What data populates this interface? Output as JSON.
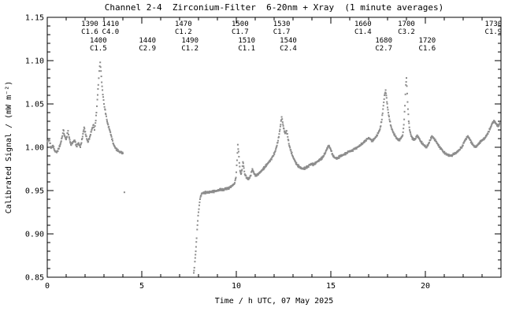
{
  "chart_data": {
    "type": "scatter",
    "title": "Channel 2-4  Zirconium-Filter  6-20nm + Xray  (1 minute averages)",
    "xlabel": "Time / h UTC, 07 May 2025",
    "ylabel": "Calibrated Signal / (mW m⁻²)",
    "xlim": [
      0,
      24
    ],
    "ylim": [
      0.85,
      1.15
    ],
    "xticks_major": [
      0,
      5,
      10,
      15,
      20
    ],
    "xtick_labels": [
      "0",
      "5",
      "10",
      "15",
      "20"
    ],
    "x_minor_step": 1,
    "yticks_major": [
      0.85,
      0.9,
      0.95,
      1.0,
      1.05,
      1.1,
      1.15
    ],
    "ytick_labels": [
      "0.85",
      "0.90",
      "0.95",
      "1.00",
      "1.05",
      "1.10",
      "1.15"
    ],
    "y_minor_step": 0.01,
    "grid": false,
    "legend": "none",
    "marker": "square",
    "marker_size": 2,
    "marker_color": "#8c8c8c",
    "axis_color": "#000000",
    "flare_annotations": [
      {
        "event": "1390",
        "class": "C1.6",
        "t": 2.25,
        "row": "upper"
      },
      {
        "event": "1400",
        "class": "C1.5",
        "t": 2.7,
        "row": "lower"
      },
      {
        "event": "1410",
        "class": "C4.0",
        "t": 3.35,
        "row": "upper"
      },
      {
        "event": "1440",
        "class": "C2.9",
        "t": 5.3,
        "row": "lower"
      },
      {
        "event": "1470",
        "class": "C1.2",
        "t": 7.2,
        "row": "upper"
      },
      {
        "event": "1490",
        "class": "C1.2",
        "t": 7.55,
        "row": "lower"
      },
      {
        "event": "1500",
        "class": "C1.7",
        "t": 10.2,
        "row": "upper"
      },
      {
        "event": "1510",
        "class": "C1.1",
        "t": 10.55,
        "row": "lower"
      },
      {
        "event": "1530",
        "class": "C1.7",
        "t": 12.4,
        "row": "upper"
      },
      {
        "event": "1540",
        "class": "C2.4",
        "t": 12.75,
        "row": "lower"
      },
      {
        "event": "1660",
        "class": "C1.4",
        "t": 16.7,
        "row": "upper"
      },
      {
        "event": "1680",
        "class": "C2.7",
        "t": 17.8,
        "row": "lower"
      },
      {
        "event": "1700",
        "class": "C3.2",
        "t": 19.0,
        "row": "upper"
      },
      {
        "event": "1720",
        "class": "C1.6",
        "t": 20.1,
        "row": "lower"
      },
      {
        "event": "1730",
        "class": "C1.9",
        "t": 23.6,
        "row": "upper"
      }
    ],
    "segments": [
      [
        [
          0.0,
          1.006
        ],
        [
          0.1,
          1.01
        ],
        [
          0.2,
          0.999
        ],
        [
          0.3,
          1.002
        ],
        [
          0.4,
          0.996
        ],
        [
          0.5,
          0.994
        ],
        [
          0.6,
          0.998
        ],
        [
          0.7,
          1.004
        ],
        [
          0.8,
          1.013
        ],
        [
          0.85,
          1.02
        ],
        [
          0.9,
          1.014
        ],
        [
          1.0,
          1.009
        ],
        [
          1.1,
          1.019
        ],
        [
          1.15,
          1.012
        ],
        [
          1.25,
          1.003
        ],
        [
          1.35,
          1.006
        ],
        [
          1.45,
          1.008
        ],
        [
          1.55,
          1.001
        ],
        [
          1.65,
          1.005
        ],
        [
          1.75,
          1.0
        ],
        [
          1.85,
          1.01
        ],
        [
          1.95,
          1.023
        ],
        [
          2.05,
          1.013
        ],
        [
          2.15,
          1.006
        ],
        [
          2.25,
          1.012
        ],
        [
          2.35,
          1.02
        ],
        [
          2.45,
          1.026
        ],
        [
          2.5,
          1.02
        ],
        [
          2.55,
          1.028
        ],
        [
          2.6,
          1.04
        ],
        [
          2.65,
          1.055
        ],
        [
          2.7,
          1.072
        ],
        [
          2.75,
          1.088
        ],
        [
          2.8,
          1.098
        ],
        [
          2.84,
          1.088
        ],
        [
          2.88,
          1.075
        ],
        [
          2.92,
          1.066
        ],
        [
          2.96,
          1.058
        ],
        [
          3.0,
          1.05
        ],
        [
          3.05,
          1.044
        ],
        [
          3.1,
          1.038
        ],
        [
          3.15,
          1.032
        ],
        [
          3.2,
          1.027
        ],
        [
          3.3,
          1.02
        ],
        [
          3.4,
          1.012
        ],
        [
          3.5,
          1.004
        ],
        [
          3.6,
          0.999
        ],
        [
          3.7,
          0.997
        ],
        [
          3.8,
          0.995
        ],
        [
          3.9,
          0.994
        ],
        [
          4.0,
          0.993
        ]
      ],
      [
        [
          4.08,
          0.948
        ]
      ],
      [
        [
          7.75,
          0.855
        ],
        [
          7.78,
          0.861
        ],
        [
          7.81,
          0.868
        ],
        [
          7.84,
          0.876
        ],
        [
          7.87,
          0.885
        ],
        [
          7.9,
          0.895
        ],
        [
          7.93,
          0.905
        ],
        [
          7.96,
          0.915
        ],
        [
          8.0,
          0.925
        ],
        [
          8.04,
          0.933
        ],
        [
          8.08,
          0.94
        ],
        [
          8.12,
          0.944
        ],
        [
          8.16,
          0.946
        ],
        [
          8.25,
          0.947
        ],
        [
          8.4,
          0.948
        ],
        [
          8.55,
          0.948
        ],
        [
          8.7,
          0.949
        ],
        [
          8.85,
          0.949
        ],
        [
          9.0,
          0.95
        ],
        [
          9.15,
          0.951
        ],
        [
          9.3,
          0.951
        ],
        [
          9.45,
          0.952
        ],
        [
          9.6,
          0.953
        ],
        [
          9.75,
          0.955
        ],
        [
          9.9,
          0.958
        ],
        [
          9.98,
          0.965
        ],
        [
          10.04,
          0.985
        ],
        [
          10.08,
          1.003
        ],
        [
          10.12,
          0.995
        ],
        [
          10.16,
          0.982
        ],
        [
          10.2,
          0.973
        ],
        [
          10.25,
          0.969
        ],
        [
          10.3,
          0.974
        ],
        [
          10.35,
          0.983
        ],
        [
          10.4,
          0.976
        ],
        [
          10.45,
          0.969
        ],
        [
          10.55,
          0.965
        ],
        [
          10.65,
          0.963
        ],
        [
          10.75,
          0.967
        ],
        [
          10.85,
          0.975
        ],
        [
          10.95,
          0.969
        ],
        [
          11.05,
          0.967
        ],
        [
          11.2,
          0.97
        ],
        [
          11.35,
          0.973
        ],
        [
          11.5,
          0.977
        ],
        [
          11.65,
          0.981
        ],
        [
          11.8,
          0.985
        ],
        [
          11.95,
          0.99
        ],
        [
          12.05,
          0.995
        ],
        [
          12.15,
          1.002
        ],
        [
          12.25,
          1.012
        ],
        [
          12.33,
          1.024
        ],
        [
          12.4,
          1.035
        ],
        [
          12.45,
          1.029
        ],
        [
          12.5,
          1.022
        ],
        [
          12.58,
          1.016
        ],
        [
          12.66,
          1.019
        ],
        [
          12.72,
          1.012
        ],
        [
          12.8,
          1.002
        ],
        [
          12.9,
          0.995
        ],
        [
          13.0,
          0.989
        ],
        [
          13.1,
          0.984
        ],
        [
          13.2,
          0.98
        ],
        [
          13.35,
          0.977
        ],
        [
          13.5,
          0.975
        ],
        [
          13.65,
          0.976
        ],
        [
          13.8,
          0.978
        ],
        [
          13.95,
          0.981
        ],
        [
          14.1,
          0.98
        ],
        [
          14.25,
          0.983
        ],
        [
          14.4,
          0.985
        ],
        [
          14.55,
          0.988
        ],
        [
          14.7,
          0.993
        ],
        [
          14.8,
          0.999
        ],
        [
          14.9,
          1.002
        ],
        [
          15.0,
          0.997
        ],
        [
          15.1,
          0.991
        ],
        [
          15.2,
          0.988
        ],
        [
          15.35,
          0.987
        ],
        [
          15.5,
          0.99
        ],
        [
          15.65,
          0.991
        ],
        [
          15.8,
          0.993
        ],
        [
          15.95,
          0.995
        ],
        [
          16.1,
          0.996
        ],
        [
          16.25,
          0.998
        ],
        [
          16.4,
          1.0
        ],
        [
          16.55,
          1.002
        ],
        [
          16.7,
          1.005
        ],
        [
          16.85,
          1.008
        ],
        [
          17.0,
          1.011
        ],
        [
          17.1,
          1.009
        ],
        [
          17.2,
          1.007
        ],
        [
          17.3,
          1.01
        ],
        [
          17.4,
          1.012
        ],
        [
          17.5,
          1.016
        ],
        [
          17.6,
          1.021
        ],
        [
          17.7,
          1.032
        ],
        [
          17.78,
          1.048
        ],
        [
          17.84,
          1.06
        ],
        [
          17.9,
          1.066
        ],
        [
          17.95,
          1.057
        ],
        [
          18.0,
          1.046
        ],
        [
          18.06,
          1.037
        ],
        [
          18.12,
          1.03
        ],
        [
          18.2,
          1.023
        ],
        [
          18.3,
          1.017
        ],
        [
          18.4,
          1.013
        ],
        [
          18.5,
          1.01
        ],
        [
          18.6,
          1.008
        ],
        [
          18.7,
          1.01
        ],
        [
          18.8,
          1.014
        ],
        [
          18.86,
          1.026
        ],
        [
          18.92,
          1.048
        ],
        [
          18.97,
          1.072
        ],
        [
          19.0,
          1.08
        ],
        [
          19.04,
          1.062
        ],
        [
          19.08,
          1.044
        ],
        [
          19.12,
          1.03
        ],
        [
          19.17,
          1.02
        ],
        [
          19.25,
          1.013
        ],
        [
          19.35,
          1.009
        ],
        [
          19.45,
          1.009
        ],
        [
          19.55,
          1.013
        ],
        [
          19.65,
          1.011
        ],
        [
          19.75,
          1.007
        ],
        [
          19.85,
          1.004
        ],
        [
          19.95,
          1.002
        ],
        [
          20.05,
          1.0
        ],
        [
          20.15,
          1.003
        ],
        [
          20.25,
          1.008
        ],
        [
          20.35,
          1.013
        ],
        [
          20.45,
          1.01
        ],
        [
          20.55,
          1.007
        ],
        [
          20.65,
          1.004
        ],
        [
          20.75,
          1.0
        ],
        [
          20.85,
          0.998
        ],
        [
          20.95,
          0.995
        ],
        [
          21.05,
          0.993
        ],
        [
          21.2,
          0.991
        ],
        [
          21.35,
          0.99
        ],
        [
          21.5,
          0.992
        ],
        [
          21.65,
          0.994
        ],
        [
          21.8,
          0.997
        ],
        [
          21.95,
          1.001
        ],
        [
          22.05,
          1.006
        ],
        [
          22.15,
          1.01
        ],
        [
          22.25,
          1.013
        ],
        [
          22.35,
          1.009
        ],
        [
          22.45,
          1.005
        ],
        [
          22.55,
          1.002
        ],
        [
          22.65,
          1.0
        ],
        [
          22.75,
          1.002
        ],
        [
          22.85,
          1.005
        ],
        [
          22.95,
          1.007
        ],
        [
          23.05,
          1.009
        ],
        [
          23.15,
          1.011
        ],
        [
          23.25,
          1.014
        ],
        [
          23.35,
          1.018
        ],
        [
          23.45,
          1.023
        ],
        [
          23.55,
          1.028
        ],
        [
          23.65,
          1.03
        ],
        [
          23.75,
          1.027
        ],
        [
          23.85,
          1.024
        ],
        [
          23.95,
          1.028
        ]
      ]
    ]
  }
}
